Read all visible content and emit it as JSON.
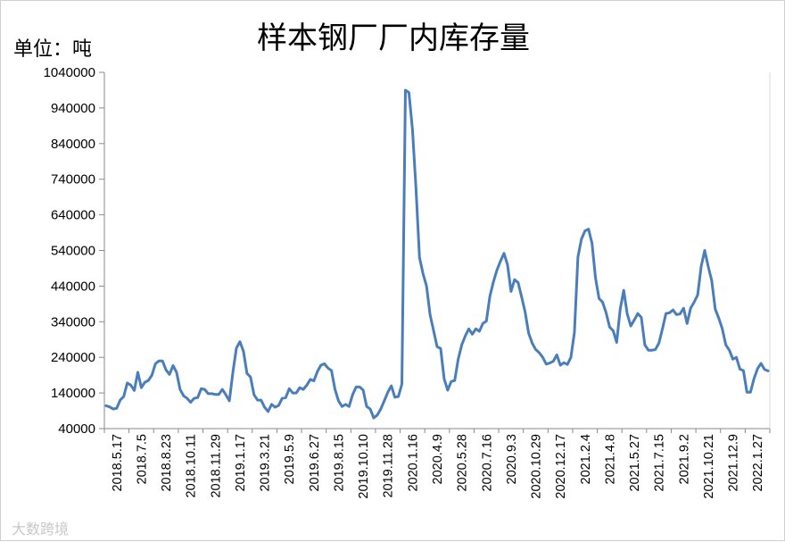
{
  "chart_data": {
    "type": "line",
    "title": "样本钢厂厂内库存量",
    "ylabel": "单位：吨",
    "xlabel": "",
    "ylim": [
      40000,
      1040000
    ],
    "yticks": [
      40000,
      140000,
      240000,
      340000,
      440000,
      540000,
      640000,
      740000,
      840000,
      940000,
      1040000
    ],
    "xtick_labels": [
      "2018.5.17",
      "2018.7.5",
      "2018.8.23",
      "2018.10.11",
      "2018.11.29",
      "2019.1.17",
      "2019.3.21",
      "2019.5.9",
      "2019.6.27",
      "2019.8.15",
      "2019.10.10",
      "2019.11.28",
      "2020.1.16",
      "2020.4.9",
      "2020.5.28",
      "2020.7.16",
      "2020.9.3",
      "2020.10.29",
      "2020.12.17",
      "2021.2.4",
      "2021.4.8",
      "2021.5.27",
      "2021.7.15",
      "2021.9.2",
      "2021.10.21",
      "2021.12.9",
      "2022.1.27"
    ],
    "grid": false,
    "series": [
      {
        "color": "#4a7ebb",
        "values": [
          104000,
          101000,
          95000,
          97000,
          120000,
          130000,
          168000,
          162000,
          147000,
          198000,
          155000,
          170000,
          175000,
          190000,
          222000,
          230000,
          230000,
          205000,
          192000,
          217000,
          198000,
          150000,
          132000,
          125000,
          114000,
          125000,
          127000,
          152000,
          150000,
          138000,
          138000,
          136000,
          136000,
          150000,
          135000,
          118000,
          198000,
          266000,
          284000,
          257000,
          195000,
          185000,
          135000,
          120000,
          120000,
          100000,
          88000,
          108000,
          100000,
          105000,
          125000,
          127000,
          152000,
          140000,
          140000,
          155000,
          150000,
          162000,
          178000,
          174000,
          200000,
          218000,
          222000,
          210000,
          203000,
          150000,
          118000,
          102000,
          108000,
          102000,
          135000,
          157000,
          157000,
          148000,
          102000,
          95000,
          70000,
          78000,
          95000,
          118000,
          142000,
          160000,
          128000,
          130000,
          165000,
          990000,
          983000,
          880000,
          715000,
          520000,
          475000,
          440000,
          360000,
          315000,
          270000,
          265000,
          180000,
          148000,
          172000,
          175000,
          235000,
          275000,
          300000,
          320000,
          305000,
          320000,
          313000,
          335000,
          342000,
          412000,
          452000,
          485000,
          510000,
          532000,
          500000,
          425000,
          458000,
          450000,
          410000,
          367000,
          308000,
          280000,
          262000,
          253000,
          240000,
          221000,
          224000,
          229000,
          247000,
          218000,
          225000,
          220000,
          240000,
          310000,
          522000,
          572000,
          595000,
          600000,
          560000,
          462000,
          405000,
          395000,
          365000,
          325000,
          315000,
          282000,
          375000,
          428000,
          362000,
          328000,
          345000,
          363000,
          352000,
          275000,
          260000,
          260000,
          262000,
          280000,
          320000,
          363000,
          365000,
          373000,
          360000,
          362000,
          378000,
          335000,
          378000,
          395000,
          415000,
          495000,
          540000,
          495000,
          455000,
          375000,
          350000,
          320000,
          275000,
          260000,
          235000,
          240000,
          207000,
          203000,
          142000,
          142000,
          180000,
          208000,
          223000,
          206000,
          202000
        ]
      }
    ]
  },
  "watermark": "大数跨境"
}
